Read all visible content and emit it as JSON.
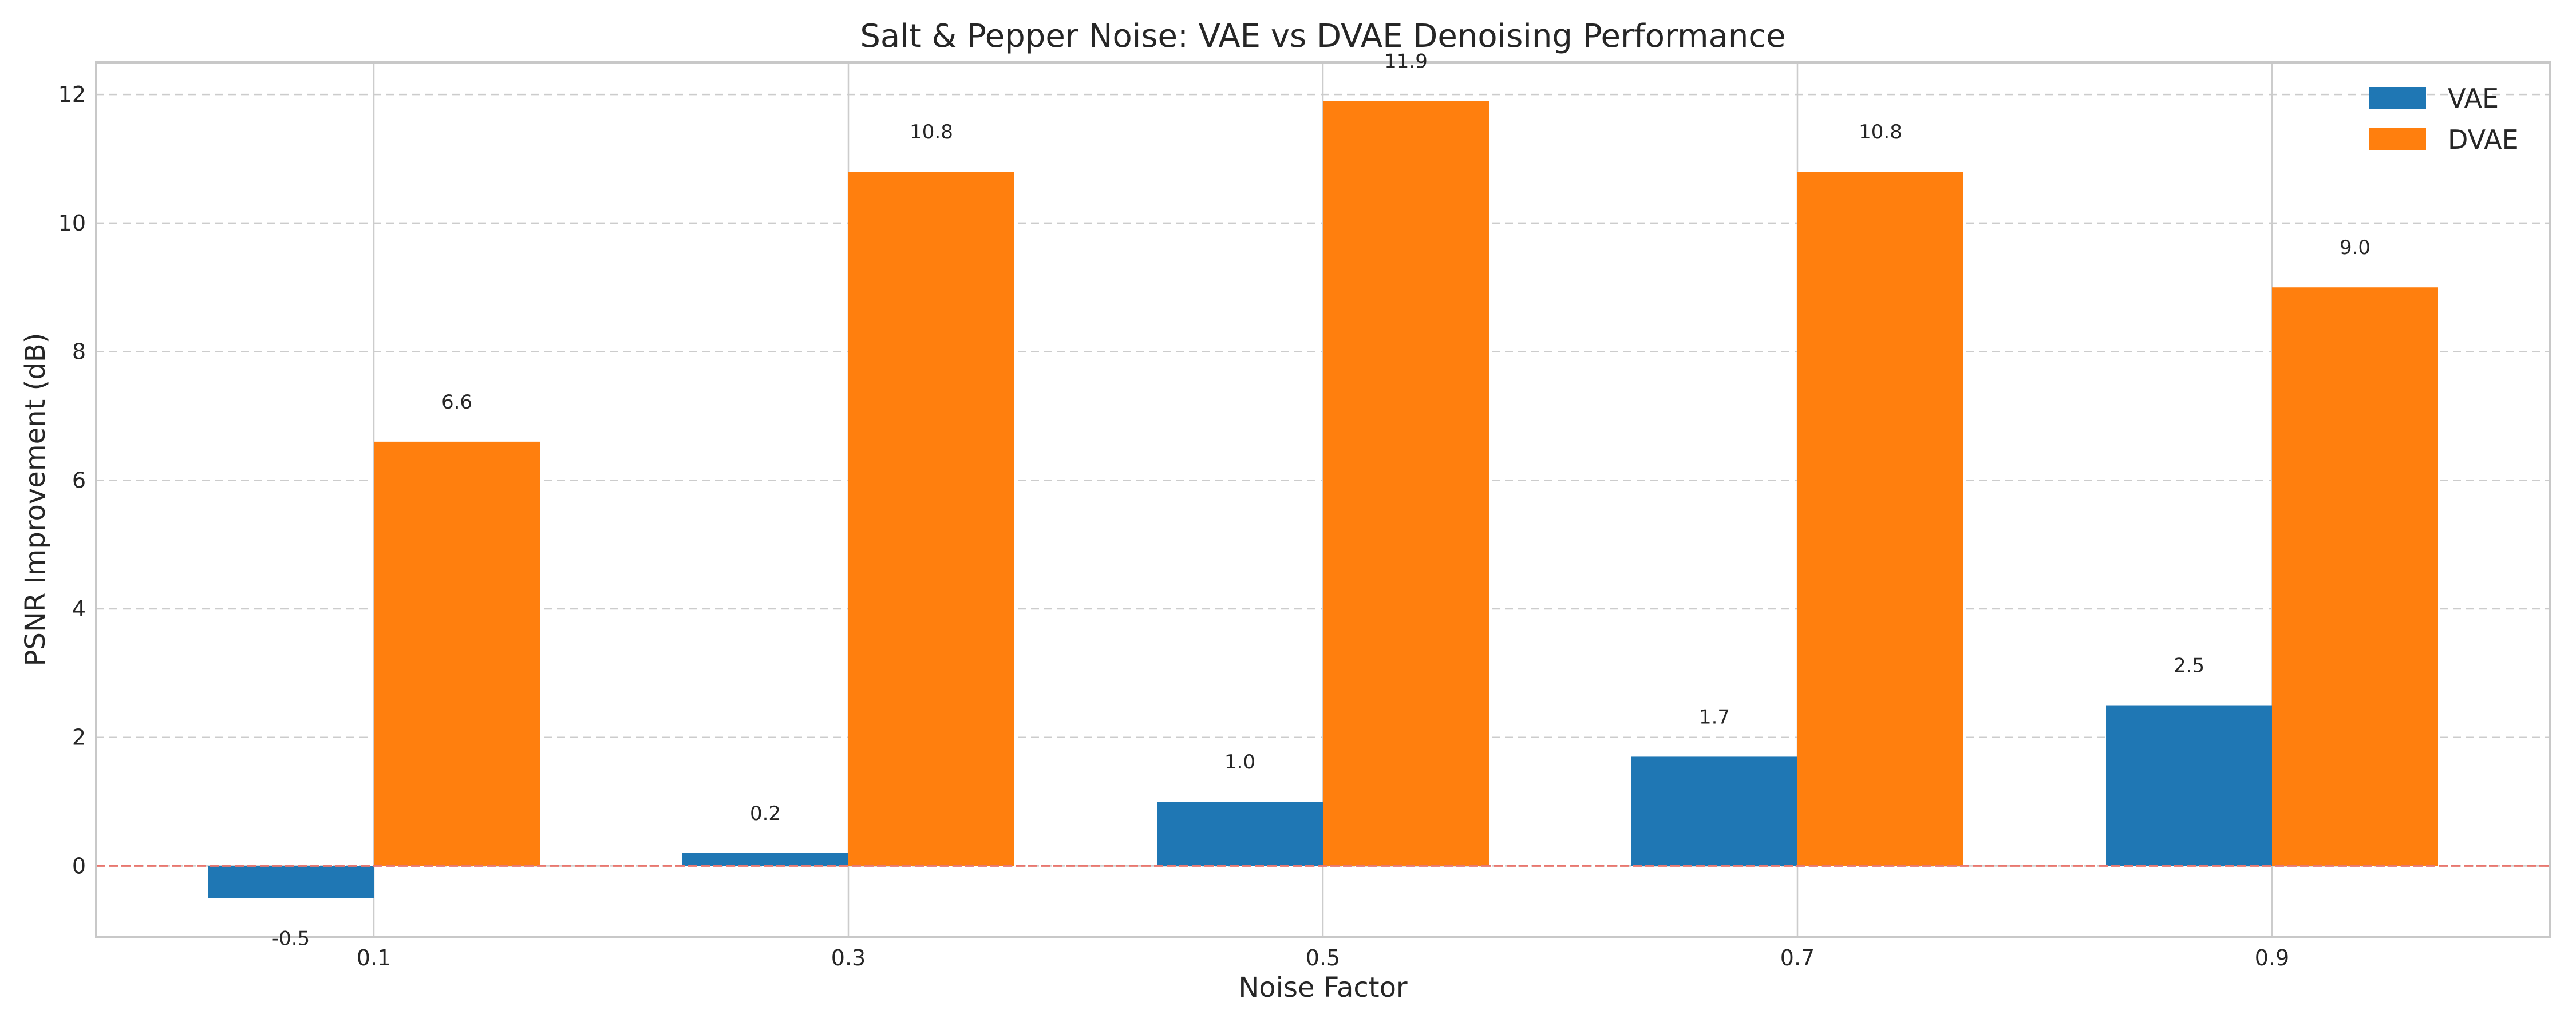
{
  "chart_data": {
    "type": "bar",
    "title": "Salt & Pepper Noise: VAE vs DVAE Denoising Performance",
    "xlabel": "Noise Factor",
    "ylabel": "PSNR Improvement (dB)",
    "categories": [
      "0.1",
      "0.3",
      "0.5",
      "0.7",
      "0.9"
    ],
    "series": [
      {
        "name": "VAE",
        "color": "#1f77b4",
        "values": [
          -0.5,
          0.2,
          1.0,
          1.7,
          2.5
        ],
        "labels": [
          "-0.5",
          "0.2",
          "1.0",
          "1.7",
          "2.5"
        ]
      },
      {
        "name": "DVAE",
        "color": "#ff7f0e",
        "values": [
          6.6,
          10.8,
          11.9,
          10.8,
          9.0
        ],
        "labels": [
          "6.6",
          "10.8",
          "11.9",
          "10.8",
          "9.0"
        ]
      }
    ],
    "ylim": [
      -1.1,
      12.5
    ],
    "yticks": [
      0,
      2,
      4,
      6,
      8,
      10,
      12
    ],
    "reference_line": {
      "y": 0,
      "color": "#e8776f",
      "style": "dashed"
    },
    "grid": true,
    "legend_position": "top-right"
  }
}
